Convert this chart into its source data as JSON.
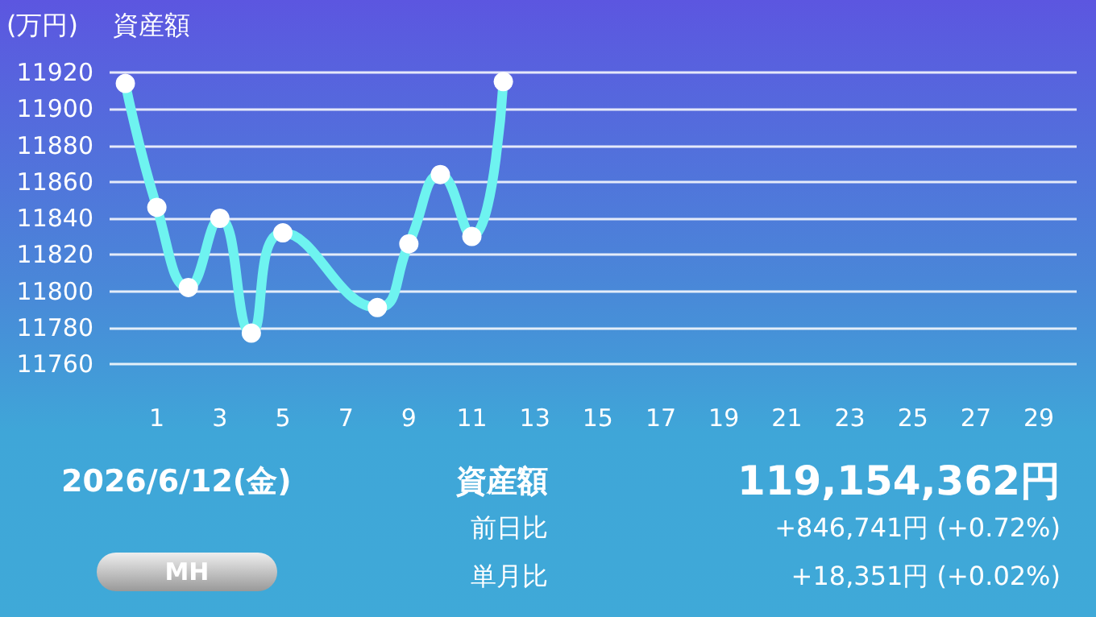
{
  "chart_data": {
    "type": "line",
    "title": "資産額",
    "ylabel": "(万円)",
    "x": [
      0,
      1,
      2,
      3,
      4,
      5,
      8,
      9,
      10,
      11,
      12
    ],
    "series": [
      {
        "color": "#6ef3f0",
        "values": [
          11914,
          11846,
          11802,
          11840,
          11777,
          11832,
          11791,
          11826,
          11864,
          11830,
          11915
        ]
      }
    ],
    "xlim": [
      -0.5,
      30.2
    ],
    "xticks": [
      1,
      3,
      5,
      7,
      9,
      11,
      13,
      15,
      17,
      19,
      21,
      23,
      25,
      27,
      29
    ],
    "ylim": [
      11760,
      11920
    ],
    "yticks": [
      11760,
      11780,
      11800,
      11820,
      11840,
      11860,
      11880,
      11900,
      11920
    ],
    "grid": "y",
    "marker": "circle",
    "line_style": "solid",
    "annotations": [
      "2026/6/12(金)",
      "資産額",
      "119,154,362円",
      "前日比",
      "+846,741円 (+0.72%)",
      "単月比",
      "+18,351円 (+0.02%)",
      "MH"
    ]
  }
}
